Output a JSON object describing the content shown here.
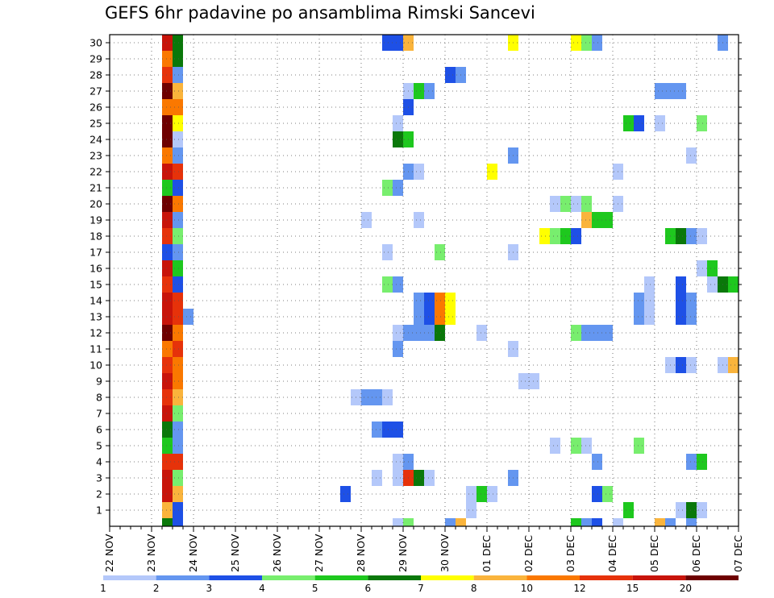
{
  "title": "GEFS 6hr padavine po ansamblima Rimski Sancevi",
  "chart_data": {
    "type": "heatmap",
    "title": "GEFS 6hr padavine po ansamblima Rimski Sancevi",
    "xlabel": "",
    "ylabel": "",
    "x_tick_labels": [
      "22 NOV",
      "23 NOV",
      "24 NOV",
      "25 NOV",
      "26 NOV",
      "27 NOV",
      "28 NOV",
      "29 NOV",
      "30 NOV",
      "01 DEC",
      "02 DEC",
      "03 DEC",
      "04 DEC",
      "05 DEC",
      "06 DEC",
      "07 DEC"
    ],
    "y_tick_labels": [
      "1",
      "2",
      "3",
      "4",
      "5",
      "6",
      "7",
      "8",
      "9",
      "10",
      "11",
      "12",
      "13",
      "14",
      "15",
      "16",
      "17",
      "18",
      "19",
      "20",
      "21",
      "22",
      "23",
      "24",
      "25",
      "26",
      "27",
      "28",
      "29",
      "30"
    ],
    "y_range": [
      0,
      30
    ],
    "x_steps_per_day": 4,
    "grid": true,
    "colorbar": {
      "labels": [
        "1",
        "2",
        "3",
        "4",
        "5",
        "6",
        "7",
        "8",
        "10",
        "12",
        "15",
        "20"
      ],
      "colors": [
        "#b4c8fa",
        "#6496f0",
        "#1e50e6",
        "#78ee6e",
        "#1ec81e",
        "#0a780a",
        "#ffff00",
        "#fab43c",
        "#fa7800",
        "#e6320a",
        "#c8140a",
        "#6e0000"
      ]
    },
    "cells": [
      [
        30,
        5,
        6,
        "#c8140a"
      ],
      [
        30,
        6,
        7,
        "#0a780a"
      ],
      [
        30,
        26,
        28,
        "#1e50e6"
      ],
      [
        30,
        28,
        29,
        "#fab43c"
      ],
      [
        30,
        38,
        39,
        "#ffff00"
      ],
      [
        30,
        44,
        45,
        "#ffff00"
      ],
      [
        30,
        45,
        46,
        "#78ee6e"
      ],
      [
        30,
        46,
        47,
        "#6496f0"
      ],
      [
        30,
        58,
        59,
        "#6496f0"
      ],
      [
        29,
        5,
        6,
        "#fa7800"
      ],
      [
        29,
        6,
        7,
        "#0a780a"
      ],
      [
        28,
        5,
        6,
        "#e6320a"
      ],
      [
        28,
        6,
        7,
        "#6496f0"
      ],
      [
        28,
        32,
        33,
        "#1e50e6"
      ],
      [
        28,
        33,
        34,
        "#6496f0"
      ],
      [
        27,
        5,
        6,
        "#6e0000"
      ],
      [
        27,
        6,
        7,
        "#fab43c"
      ],
      [
        27,
        28,
        29,
        "#b4c8fa"
      ],
      [
        27,
        29,
        30,
        "#1ec81e"
      ],
      [
        27,
        30,
        31,
        "#6496f0"
      ],
      [
        27,
        52,
        55,
        "#6496f0"
      ],
      [
        26,
        5,
        7,
        "#fa7800"
      ],
      [
        26,
        28,
        29,
        "#1e50e6"
      ],
      [
        25,
        5,
        6,
        "#6e0000"
      ],
      [
        25,
        6,
        7,
        "#ffff00"
      ],
      [
        25,
        27,
        28,
        "#b4c8fa"
      ],
      [
        25,
        49,
        50,
        "#1ec81e"
      ],
      [
        25,
        50,
        51,
        "#1e50e6"
      ],
      [
        25,
        52,
        53,
        "#b4c8fa"
      ],
      [
        25,
        56,
        57,
        "#78ee6e"
      ],
      [
        24,
        5,
        6,
        "#6e0000"
      ],
      [
        24,
        6,
        7,
        "#b4c8fa"
      ],
      [
        24,
        27,
        28,
        "#0a780a"
      ],
      [
        24,
        28,
        29,
        "#1ec81e"
      ],
      [
        23,
        5,
        6,
        "#fa7800"
      ],
      [
        23,
        6,
        7,
        "#6496f0"
      ],
      [
        23,
        38,
        39,
        "#6496f0"
      ],
      [
        23,
        55,
        56,
        "#b4c8fa"
      ],
      [
        22,
        5,
        6,
        "#c8140a"
      ],
      [
        22,
        6,
        7,
        "#e6320a"
      ],
      [
        22,
        28,
        29,
        "#6496f0"
      ],
      [
        22,
        29,
        30,
        "#b4c8fa"
      ],
      [
        22,
        36,
        37,
        "#ffff00"
      ],
      [
        22,
        48,
        49,
        "#b4c8fa"
      ],
      [
        21,
        5,
        6,
        "#1ec81e"
      ],
      [
        21,
        6,
        7,
        "#1e50e6"
      ],
      [
        21,
        26,
        27,
        "#78ee6e"
      ],
      [
        21,
        27,
        28,
        "#6496f0"
      ],
      [
        20,
        5,
        6,
        "#6e0000"
      ],
      [
        20,
        6,
        7,
        "#fa7800"
      ],
      [
        20,
        42,
        43,
        "#b4c8fa"
      ],
      [
        20,
        43,
        44,
        "#78ee6e"
      ],
      [
        20,
        44,
        45,
        "#b4c8fa"
      ],
      [
        20,
        45,
        46,
        "#78ee6e"
      ],
      [
        20,
        48,
        49,
        "#b4c8fa"
      ],
      [
        19,
        5,
        6,
        "#c8140a"
      ],
      [
        19,
        6,
        7,
        "#6496f0"
      ],
      [
        19,
        24,
        25,
        "#b4c8fa"
      ],
      [
        19,
        29,
        30,
        "#b4c8fa"
      ],
      [
        19,
        45,
        46,
        "#fab43c"
      ],
      [
        19,
        46,
        48,
        "#1ec81e"
      ],
      [
        18,
        5,
        6,
        "#e6320a"
      ],
      [
        18,
        6,
        7,
        "#78ee6e"
      ],
      [
        18,
        41,
        42,
        "#ffff00"
      ],
      [
        18,
        42,
        43,
        "#78ee6e"
      ],
      [
        18,
        43,
        44,
        "#1ec81e"
      ],
      [
        18,
        44,
        45,
        "#1e50e6"
      ],
      [
        18,
        53,
        54,
        "#1ec81e"
      ],
      [
        18,
        54,
        55,
        "#0a780a"
      ],
      [
        18,
        55,
        56,
        "#6496f0"
      ],
      [
        18,
        56,
        57,
        "#b4c8fa"
      ],
      [
        17,
        5,
        6,
        "#1e50e6"
      ],
      [
        17,
        6,
        7,
        "#6496f0"
      ],
      [
        17,
        26,
        27,
        "#b4c8fa"
      ],
      [
        17,
        31,
        32,
        "#78ee6e"
      ],
      [
        17,
        38,
        39,
        "#b4c8fa"
      ],
      [
        16,
        5,
        6,
        "#c8140a"
      ],
      [
        16,
        6,
        7,
        "#1ec81e"
      ],
      [
        16,
        56,
        57,
        "#b4c8fa"
      ],
      [
        16,
        57,
        58,
        "#1ec81e"
      ],
      [
        15,
        5,
        6,
        "#e6320a"
      ],
      [
        15,
        6,
        7,
        "#1e50e6"
      ],
      [
        15,
        26,
        27,
        "#78ee6e"
      ],
      [
        15,
        27,
        28,
        "#6496f0"
      ],
      [
        15,
        51,
        52,
        "#b4c8fa"
      ],
      [
        15,
        54,
        55,
        "#1e50e6"
      ],
      [
        15,
        57,
        58,
        "#b4c8fa"
      ],
      [
        15,
        58,
        59,
        "#0a780a"
      ],
      [
        15,
        59,
        60,
        "#1ec81e"
      ],
      [
        14,
        5,
        6,
        "#c8140a"
      ],
      [
        14,
        6,
        7,
        "#e6320a"
      ],
      [
        14,
        29,
        30,
        "#6496f0"
      ],
      [
        14,
        30,
        31,
        "#1e50e6"
      ],
      [
        14,
        31,
        32,
        "#fa7800"
      ],
      [
        14,
        32,
        33,
        "#ffff00"
      ],
      [
        14,
        50,
        51,
        "#6496f0"
      ],
      [
        14,
        51,
        52,
        "#b4c8fa"
      ],
      [
        14,
        54,
        55,
        "#1e50e6"
      ],
      [
        14,
        55,
        56,
        "#6496f0"
      ],
      [
        13,
        5,
        6,
        "#c8140a"
      ],
      [
        13,
        6,
        7,
        "#e6320a"
      ],
      [
        13,
        7,
        8,
        "#6496f0"
      ],
      [
        13,
        29,
        30,
        "#6496f0"
      ],
      [
        13,
        30,
        31,
        "#1e50e6"
      ],
      [
        13,
        31,
        32,
        "#fa7800"
      ],
      [
        13,
        32,
        33,
        "#ffff00"
      ],
      [
        13,
        50,
        51,
        "#6496f0"
      ],
      [
        13,
        51,
        52,
        "#b4c8fa"
      ],
      [
        13,
        54,
        55,
        "#1e50e6"
      ],
      [
        13,
        55,
        56,
        "#6496f0"
      ],
      [
        12,
        5,
        6,
        "#6e0000"
      ],
      [
        12,
        6,
        7,
        "#fa7800"
      ],
      [
        12,
        27,
        28,
        "#b4c8fa"
      ],
      [
        12,
        28,
        31,
        "#6496f0"
      ],
      [
        12,
        31,
        32,
        "#0a780a"
      ],
      [
        12,
        35,
        36,
        "#b4c8fa"
      ],
      [
        12,
        44,
        45,
        "#78ee6e"
      ],
      [
        12,
        45,
        48,
        "#6496f0"
      ],
      [
        11,
        5,
        6,
        "#fa7800"
      ],
      [
        11,
        6,
        7,
        "#e6320a"
      ],
      [
        11,
        27,
        28,
        "#6496f0"
      ],
      [
        11,
        38,
        39,
        "#b4c8fa"
      ],
      [
        10,
        5,
        6,
        "#e6320a"
      ],
      [
        10,
        6,
        7,
        "#fa7800"
      ],
      [
        10,
        53,
        54,
        "#b4c8fa"
      ],
      [
        10,
        54,
        55,
        "#1e50e6"
      ],
      [
        10,
        55,
        56,
        "#b4c8fa"
      ],
      [
        10,
        58,
        59,
        "#b4c8fa"
      ],
      [
        10,
        59,
        60,
        "#fab43c"
      ],
      [
        9,
        5,
        6,
        "#c8140a"
      ],
      [
        9,
        6,
        7,
        "#fa7800"
      ],
      [
        9,
        39,
        41,
        "#b4c8fa"
      ],
      [
        8,
        5,
        6,
        "#e6320a"
      ],
      [
        8,
        6,
        7,
        "#fab43c"
      ],
      [
        8,
        23,
        24,
        "#b4c8fa"
      ],
      [
        8,
        24,
        26,
        "#6496f0"
      ],
      [
        8,
        26,
        27,
        "#b4c8fa"
      ],
      [
        7,
        5,
        6,
        "#c8140a"
      ],
      [
        7,
        6,
        7,
        "#78ee6e"
      ],
      [
        6,
        5,
        6,
        "#0a780a"
      ],
      [
        6,
        6,
        7,
        "#6496f0"
      ],
      [
        6,
        25,
        26,
        "#6496f0"
      ],
      [
        6,
        26,
        28,
        "#1e50e6"
      ],
      [
        5,
        5,
        6,
        "#1ec81e"
      ],
      [
        5,
        6,
        7,
        "#6496f0"
      ],
      [
        5,
        42,
        43,
        "#b4c8fa"
      ],
      [
        5,
        44,
        45,
        "#78ee6e"
      ],
      [
        5,
        45,
        46,
        "#b4c8fa"
      ],
      [
        5,
        50,
        51,
        "#78ee6e"
      ],
      [
        4,
        5,
        7,
        "#e6320a"
      ],
      [
        4,
        27,
        28,
        "#b4c8fa"
      ],
      [
        4,
        28,
        29,
        "#6496f0"
      ],
      [
        4,
        46,
        47,
        "#6496f0"
      ],
      [
        4,
        55,
        56,
        "#6496f0"
      ],
      [
        4,
        56,
        57,
        "#1ec81e"
      ],
      [
        3,
        5,
        6,
        "#c8140a"
      ],
      [
        3,
        6,
        7,
        "#78ee6e"
      ],
      [
        3,
        25,
        26,
        "#b4c8fa"
      ],
      [
        3,
        27,
        28,
        "#b4c8fa"
      ],
      [
        3,
        28,
        29,
        "#e6320a"
      ],
      [
        3,
        29,
        30,
        "#0a780a"
      ],
      [
        3,
        30,
        31,
        "#b4c8fa"
      ],
      [
        3,
        38,
        39,
        "#6496f0"
      ],
      [
        2,
        5,
        6,
        "#c8140a"
      ],
      [
        2,
        6,
        7,
        "#fab43c"
      ],
      [
        2,
        22,
        23,
        "#1e50e6"
      ],
      [
        2,
        34,
        35,
        "#b4c8fa"
      ],
      [
        2,
        35,
        36,
        "#1ec81e"
      ],
      [
        2,
        36,
        37,
        "#b4c8fa"
      ],
      [
        2,
        46,
        47,
        "#1e50e6"
      ],
      [
        2,
        47,
        48,
        "#78ee6e"
      ],
      [
        1,
        5,
        6,
        "#fab43c"
      ],
      [
        1,
        6,
        7,
        "#1e50e6"
      ],
      [
        1,
        34,
        35,
        "#b4c8fa"
      ],
      [
        1,
        49,
        50,
        "#1ec81e"
      ],
      [
        1,
        54,
        55,
        "#b4c8fa"
      ],
      [
        1,
        55,
        56,
        "#0a780a"
      ],
      [
        1,
        56,
        57,
        "#b4c8fa"
      ],
      [
        0,
        5,
        6,
        "#0a780a"
      ],
      [
        0,
        6,
        7,
        "#1e50e6"
      ],
      [
        0,
        27,
        28,
        "#b4c8fa"
      ],
      [
        0,
        28,
        29,
        "#78ee6e"
      ],
      [
        0,
        32,
        33,
        "#6496f0"
      ],
      [
        0,
        33,
        34,
        "#fab43c"
      ],
      [
        0,
        44,
        45,
        "#1ec81e"
      ],
      [
        0,
        45,
        46,
        "#6496f0"
      ],
      [
        0,
        46,
        47,
        "#1e50e6"
      ],
      [
        0,
        48,
        49,
        "#b4c8fa"
      ],
      [
        0,
        52,
        53,
        "#fab43c"
      ],
      [
        0,
        53,
        54,
        "#6496f0"
      ],
      [
        0,
        55,
        56,
        "#6496f0"
      ]
    ]
  }
}
